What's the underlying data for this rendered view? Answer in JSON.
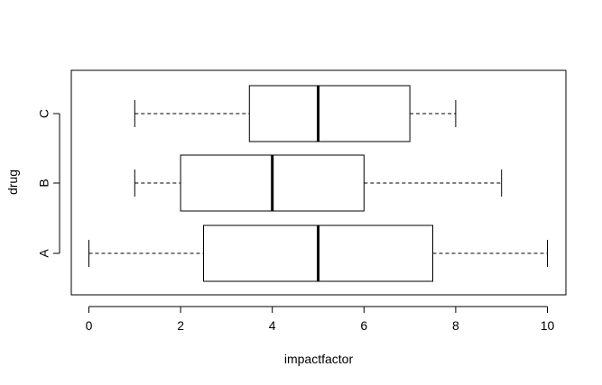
{
  "chart_data": {
    "type": "boxplot",
    "orientation": "horizontal",
    "title": "",
    "xlabel": "impactfactor",
    "ylabel": "drug",
    "xlim": [
      -0.4,
      10.4
    ],
    "x_ticks": [
      0,
      2,
      4,
      6,
      8,
      10
    ],
    "x_tick_labels": [
      "0",
      "2",
      "4",
      "6",
      "8",
      "10"
    ],
    "categories": [
      "A",
      "B",
      "C"
    ],
    "boxes": [
      {
        "name": "A",
        "min": 0,
        "q1": 2.5,
        "median": 5,
        "q3": 7.5,
        "max": 10
      },
      {
        "name": "B",
        "min": 1,
        "q1": 2,
        "median": 4,
        "q3": 6,
        "max": 9
      },
      {
        "name": "C",
        "min": 1,
        "q1": 3.5,
        "median": 5,
        "q3": 7,
        "max": 8
      }
    ],
    "grid": false,
    "legend": "none"
  }
}
